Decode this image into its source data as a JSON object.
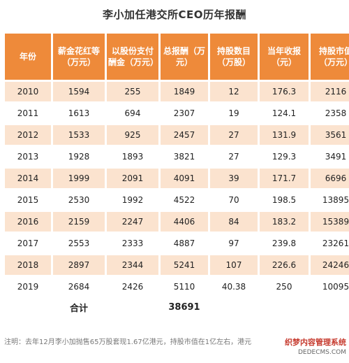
{
  "title": "李小加任港交所CEO历年报酬",
  "table": {
    "headers": [
      "年份",
      "薪金花红等（万元）",
      "以股份支付酬金（万元）",
      "总报酬（万元）",
      "持股数目（万股）",
      "当年收报（元）",
      "持股市值（万元）"
    ],
    "rows": [
      [
        "2010",
        "1594",
        "255",
        "1849",
        "12",
        "176.3",
        "2116"
      ],
      [
        "2011",
        "1613",
        "694",
        "2307",
        "19",
        "124.1",
        "2358"
      ],
      [
        "2012",
        "1533",
        "925",
        "2457",
        "27",
        "131.9",
        "3561"
      ],
      [
        "2013",
        "1928",
        "1893",
        "3821",
        "27",
        "129.3",
        "3491"
      ],
      [
        "2014",
        "1999",
        "2091",
        "4091",
        "39",
        "171.7",
        "6696"
      ],
      [
        "2015",
        "2530",
        "1992",
        "4522",
        "70",
        "198.5",
        "13895"
      ],
      [
        "2016",
        "2159",
        "2247",
        "4406",
        "84",
        "183.2",
        "15389"
      ],
      [
        "2017",
        "2553",
        "2333",
        "4887",
        "97",
        "239.8",
        "23261"
      ],
      [
        "2018",
        "2897",
        "2344",
        "5241",
        "107",
        "226.6",
        "24246"
      ],
      [
        "2019",
        "2684",
        "2426",
        "5110",
        "40.38",
        "250",
        "10095"
      ]
    ],
    "total_label": "合计",
    "total_value": "38691"
  },
  "note": "注明：去年12月李小加抛售65万股套现1.67亿港元，持股市值在1亿左右，港元",
  "watermark": {
    "main": "织梦内容管理系统",
    "sub": "DEDECMS.COM"
  },
  "colors": {
    "header_bg": "#ee8a3a",
    "row_alt_bg": "#fbe3cf"
  }
}
